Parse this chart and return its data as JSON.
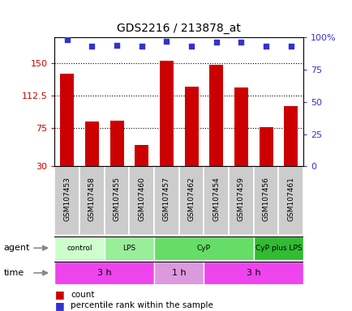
{
  "title": "GDS2216 / 213878_at",
  "samples": [
    "GSM107453",
    "GSM107458",
    "GSM107455",
    "GSM107460",
    "GSM107457",
    "GSM107462",
    "GSM107454",
    "GSM107459",
    "GSM107456",
    "GSM107461"
  ],
  "counts": [
    138,
    82,
    83,
    55,
    153,
    123,
    148,
    122,
    76,
    100
  ],
  "percentiles": [
    98,
    93,
    94,
    93,
    97,
    93,
    96,
    96,
    93,
    93
  ],
  "ylim_left": [
    30,
    180
  ],
  "yticks_left": [
    30,
    75,
    112.5,
    150
  ],
  "ylim_right": [
    0,
    100
  ],
  "yticks_right": [
    0,
    25,
    50,
    75,
    100
  ],
  "bar_color": "#cc0000",
  "dot_color": "#3333cc",
  "agent_groups": [
    {
      "label": "control",
      "start": 0,
      "end": 2,
      "color": "#ccffcc"
    },
    {
      "label": "LPS",
      "start": 2,
      "end": 4,
      "color": "#99ee99"
    },
    {
      "label": "CyP",
      "start": 4,
      "end": 8,
      "color": "#66dd66"
    },
    {
      "label": "CyP plus LPS",
      "start": 8,
      "end": 10,
      "color": "#33bb33"
    }
  ],
  "time_groups": [
    {
      "label": "3 h",
      "start": 0,
      "end": 4,
      "color": "#ee44ee"
    },
    {
      "label": "1 h",
      "start": 4,
      "end": 6,
      "color": "#dd99dd"
    },
    {
      "label": "3 h",
      "start": 6,
      "end": 10,
      "color": "#ee44ee"
    }
  ],
  "legend_count_color": "#cc0000",
  "legend_dot_color": "#3333cc",
  "tick_label_color_left": "#cc0000",
  "tick_label_color_right": "#3333cc",
  "sample_box_color": "#cccccc",
  "sample_box_edge": "#aaaaaa"
}
